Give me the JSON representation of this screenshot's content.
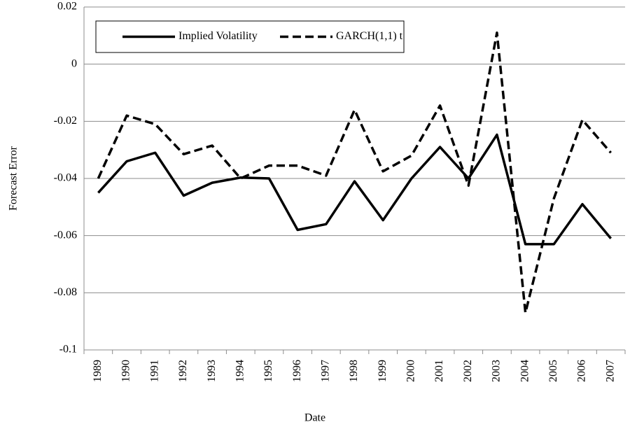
{
  "chart_data": {
    "type": "line",
    "x_label": "Date",
    "y_label": "Forecast Error",
    "categories": [
      "1989",
      "1990",
      "1991",
      "1992",
      "1993",
      "1994",
      "1995",
      "1996",
      "1997",
      "1998",
      "1999",
      "2000",
      "2001",
      "2002",
      "2003",
      "2004",
      "2005",
      "2006",
      "2007"
    ],
    "series": [
      {
        "name": "Implied Volatility",
        "color": "#000000",
        "dashed": false,
        "values": [
          -0.045,
          -0.034,
          -0.031,
          -0.046,
          -0.0415,
          -0.0397,
          -0.04,
          -0.058,
          -0.056,
          -0.041,
          -0.0546,
          -0.04,
          -0.029,
          -0.04,
          -0.0247,
          -0.063,
          -0.063,
          -0.049,
          -0.061
        ]
      },
      {
        "name": "GARCH(1,1) t",
        "color": "#000000",
        "dashed": true,
        "values": [
          -0.04,
          -0.018,
          -0.021,
          -0.0315,
          -0.0285,
          -0.04,
          -0.0355,
          -0.0355,
          -0.039,
          -0.016,
          -0.0375,
          -0.032,
          -0.0145,
          -0.0425,
          0.011,
          -0.087,
          -0.047,
          -0.0195,
          -0.031
        ]
      }
    ],
    "ylim": [
      -0.1,
      0.02
    ],
    "yticks": [
      -0.1,
      -0.08,
      -0.06,
      -0.04,
      -0.02,
      0,
      0.02
    ],
    "grid": true,
    "legend": "top-left"
  }
}
